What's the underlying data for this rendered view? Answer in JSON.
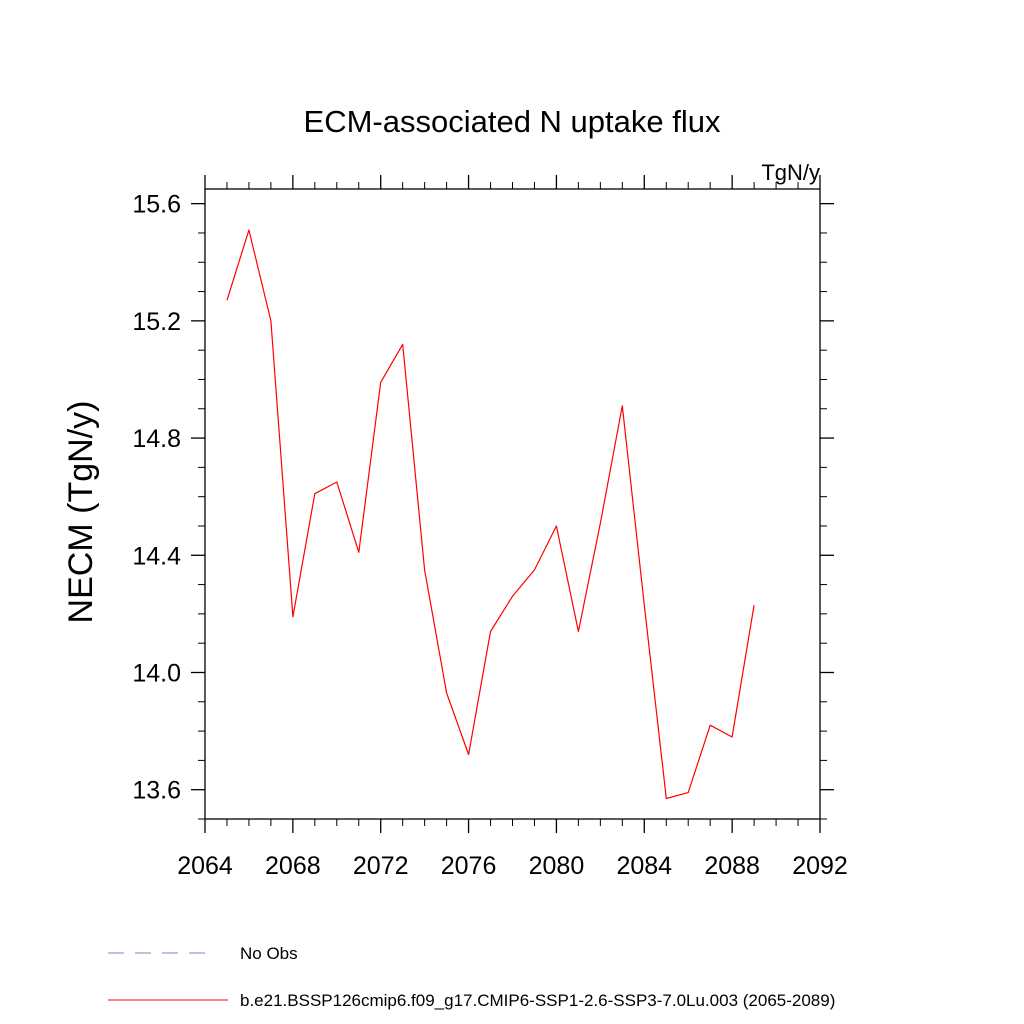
{
  "chart_data": {
    "type": "line",
    "title": "ECM-associated N uptake flux",
    "units_label": "TgN/y",
    "ylabel": "NECM  (TgN/y)",
    "xlabel": "",
    "xlim": [
      2064,
      2092
    ],
    "ylim": [
      13.5,
      15.65
    ],
    "x_ticks": [
      2064,
      2068,
      2072,
      2076,
      2080,
      2084,
      2088,
      2092
    ],
    "x_tick_labels": [
      "2064",
      "2068",
      "2072",
      "2076",
      "2080",
      "2084",
      "2088",
      "2092"
    ],
    "x_minor_step": 1,
    "y_ticks": [
      13.6,
      14.0,
      14.4,
      14.8,
      15.2,
      15.6
    ],
    "y_tick_labels": [
      "13.6",
      "14.0",
      "14.4",
      "14.8",
      "15.2",
      "15.6"
    ],
    "y_minor_step": 0.1,
    "grid": false,
    "series": [
      {
        "name": "b.e21.BSSP126cmip6.f09_g17.CMIP6-SSP1-2.6-SSP3-7.0Lu.003 (2065-2089)",
        "color": "#ff0000",
        "style": "solid",
        "x": [
          2065,
          2066,
          2067,
          2068,
          2069,
          2070,
          2071,
          2072,
          2073,
          2074,
          2075,
          2076,
          2077,
          2078,
          2079,
          2080,
          2081,
          2082,
          2083,
          2084,
          2085,
          2086,
          2087,
          2088,
          2089
        ],
        "y": [
          15.27,
          15.51,
          15.2,
          14.19,
          14.61,
          14.65,
          14.41,
          14.99,
          15.12,
          14.35,
          13.93,
          13.72,
          14.14,
          14.26,
          14.35,
          14.5,
          14.14,
          14.51,
          14.91,
          14.23,
          13.57,
          13.59,
          13.82,
          13.78,
          14.23
        ]
      }
    ],
    "legend": [
      {
        "label": "No Obs",
        "color": "#8080c0",
        "style": "dashed"
      },
      {
        "label": "b.e21.BSSP126cmip6.f09_g17.CMIP6-SSP1-2.6-SSP3-7.0Lu.003 (2065-2089)",
        "color": "#ff0000",
        "style": "solid"
      }
    ],
    "legend_position": "bottom-left"
  }
}
